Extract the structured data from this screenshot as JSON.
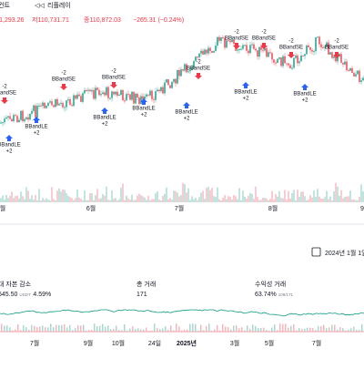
{
  "toolbar": {
    "chart": "컨트",
    "replay": "리플레이"
  },
  "ohlc": {
    "high": "고111,293.26",
    "low": "저110,731.71",
    "close": "종110,872.03",
    "change": "−265.31 (−0.24%)"
  },
  "signals": [
    {
      "text": "BBandSE",
      "qty": "-2"
    },
    {
      "text": "BBandLE",
      "qty": "+2"
    },
    {
      "text": "BBandLE",
      "qty": "+2"
    },
    {
      "text": "BBandSE",
      "qty": "-2"
    },
    {
      "text": "BBandLE",
      "qty": "+2"
    },
    {
      "text": "BBandSE",
      "qty": "-2"
    },
    {
      "text": "BBandLE",
      "qty": "+2"
    },
    {
      "text": "BBandLE",
      "qty": "+2"
    },
    {
      "text": "BBandSE",
      "qty": "-2"
    },
    {
      "text": "BBandSE",
      "qty": "-2"
    },
    {
      "text": "BBandSE",
      "qty": "-2"
    },
    {
      "text": "BBandLE",
      "qty": "+2"
    },
    {
      "text": "BBandSE",
      "qty": "-2"
    },
    {
      "text": "BBandSE",
      "qty": "-2"
    },
    {
      "text": "BBandLE",
      "qty": "+2"
    }
  ],
  "main_axis": [
    "월",
    "6월",
    "7월",
    "8월",
    "9"
  ],
  "date_range": "2024년 1월 1일 —",
  "stats": [
    {
      "label": "대 자본 감소",
      "value": "545.50",
      "unit": "USDT",
      "extra": "4.59%"
    },
    {
      "label": "총 거래",
      "value": "171",
      "unit": "",
      "extra": ""
    },
    {
      "label": "수익성 거래",
      "value": "63.74%",
      "unit": "109/171",
      "extra": ""
    }
  ],
  "bottom_axis": [
    "7월",
    "9월",
    "10월",
    "24일",
    "2025년",
    "3월",
    "5월",
    "7월"
  ]
}
